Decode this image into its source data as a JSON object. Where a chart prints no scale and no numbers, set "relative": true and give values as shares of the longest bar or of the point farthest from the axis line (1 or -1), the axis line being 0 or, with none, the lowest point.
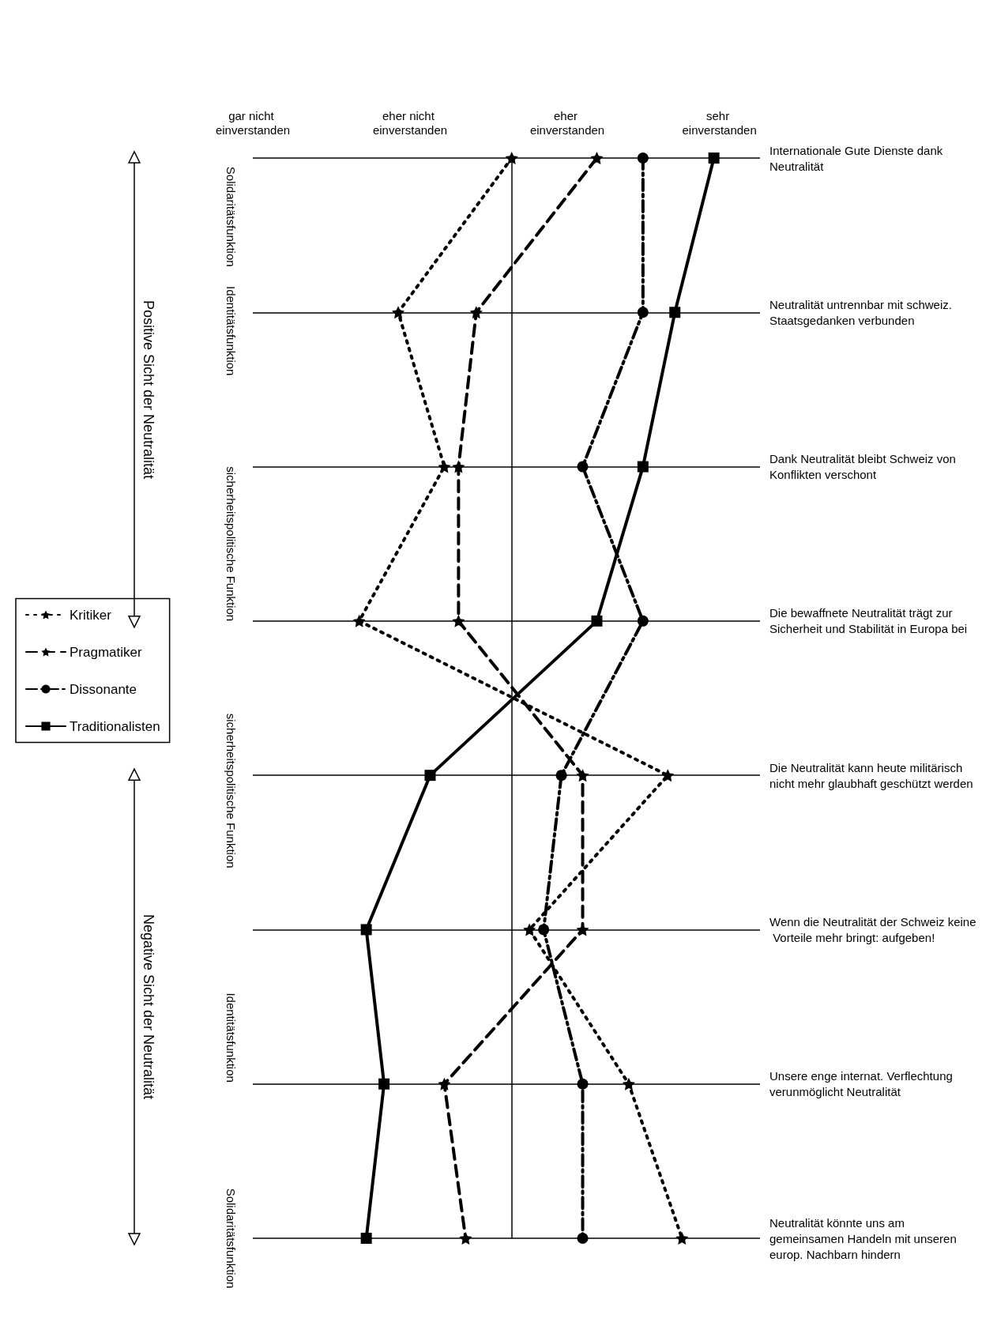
{
  "chart_data": {
    "type": "line",
    "orientation": "horizontal",
    "relative": true,
    "categories": [
      "Internationale Gute Dienste dank Neutralität",
      "Neutralität untrennbar mit schweiz. Staatsgedanken verbunden",
      "Dank Neutralität bleibt Schweiz von Konflikten verschont",
      "Die bewaffnete Neutralität trägt zur Sicherheit und Stabilität in Europa bei",
      "Die Neutralität kann heute militärisch nicht mehr glaubhaft geschützt werden",
      "Wenn die Neutralität der Schweiz keine Vorteile mehr bringt: aufgeben!",
      "Unsere enge internat. Verflechtung verunmöglicht Neutralität",
      "Neutralität könnte uns am gemeinsamen Handeln mit unseren europ. Nachbarn hindern"
    ],
    "series": [
      {
        "name": "Kritiker",
        "color": "#000000",
        "marker": "star",
        "line_style": "dotted",
        "values": [
          0.43,
          0.11,
          0.24,
          0,
          0.87,
          0.48,
          0.76,
          0.91
        ]
      },
      {
        "name": "Pragmatiker",
        "color": "#000000",
        "marker": "star",
        "line_style": "dashed",
        "values": [
          0.67,
          0.33,
          0.28,
          0.28,
          0.63,
          0.63,
          0.24,
          0.3
        ]
      },
      {
        "name": "Dissonante",
        "color": "#000000",
        "marker": "circle",
        "line_style": "dashdot",
        "values": [
          0.8,
          0.8,
          0.63,
          0.8,
          0.57,
          0.52,
          0.63,
          0.63
        ]
      },
      {
        "name": "Traditionalisten",
        "color": "#000000",
        "marker": "square",
        "line_style": "solid",
        "values": [
          1,
          0.89,
          0.8,
          0.67,
          0.2,
          0.02,
          0.07,
          0.02
        ]
      }
    ],
    "ref_lines": [
      {
        "axis": "x",
        "value": 0.43
      }
    ],
    "grid": "y",
    "legend": "left",
    "annotations": [
      "gar nicht einverstanden",
      "eher nicht einverstanden",
      "eher einverstanden",
      "sehr einverstanden",
      "Solidaritätsfunktion",
      "Identitätsfunktion",
      "sicherheitspolitische Funktion",
      "sicherheitspolitische Funktion",
      "Identitätsfunktion",
      "Solidaritätsfunktion",
      "Positive Sicht der Neutralität",
      "Negative Sicht der Neutralität"
    ]
  }
}
